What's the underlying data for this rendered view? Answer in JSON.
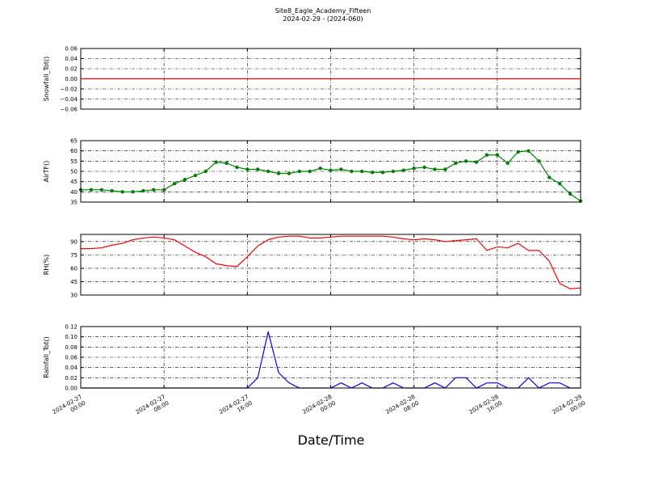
{
  "figure": {
    "title": "Site8_Eagle_Academy_Fifteen",
    "subtitle": "2024-02-29 - (2024-060)"
  },
  "x_axis": {
    "label": "Date/Time",
    "xlim": [
      "2024-02-27 00:00",
      "2024-02-29 00:00"
    ],
    "xticks": [
      "2024-02-27 00:00",
      "2024-02-27 08:00",
      "2024-02-27 16:00",
      "2024-02-28 00:00",
      "2024-02-28 08:00",
      "2024-02-28 16:00",
      "2024-02-29 00:00"
    ],
    "x": [
      "2024-02-27 00:00",
      "2024-02-27 01:00",
      "2024-02-27 02:00",
      "2024-02-27 03:00",
      "2024-02-27 04:00",
      "2024-02-27 05:00",
      "2024-02-27 06:00",
      "2024-02-27 07:00",
      "2024-02-27 08:00",
      "2024-02-27 09:00",
      "2024-02-27 10:00",
      "2024-02-27 11:00",
      "2024-02-27 12:00",
      "2024-02-27 13:00",
      "2024-02-27 14:00",
      "2024-02-27 15:00",
      "2024-02-27 16:00",
      "2024-02-27 17:00",
      "2024-02-27 18:00",
      "2024-02-27 19:00",
      "2024-02-27 20:00",
      "2024-02-27 21:00",
      "2024-02-27 22:00",
      "2024-02-27 23:00",
      "2024-02-28 00:00",
      "2024-02-28 01:00",
      "2024-02-28 02:00",
      "2024-02-28 03:00",
      "2024-02-28 04:00",
      "2024-02-28 05:00",
      "2024-02-28 06:00",
      "2024-02-28 07:00",
      "2024-02-28 08:00",
      "2024-02-28 09:00",
      "2024-02-28 10:00",
      "2024-02-28 11:00",
      "2024-02-28 12:00",
      "2024-02-28 13:00",
      "2024-02-28 14:00",
      "2024-02-28 15:00",
      "2024-02-28 16:00",
      "2024-02-28 17:00",
      "2024-02-28 18:00",
      "2024-02-28 19:00",
      "2024-02-28 20:00",
      "2024-02-28 21:00",
      "2024-02-28 22:00",
      "2024-02-28 23:00",
      "2024-02-29 00:00"
    ]
  },
  "chart_data": [
    {
      "type": "line",
      "ylabel": "Snowfall_Tot()",
      "color": "#ff0000",
      "grid": true,
      "markers": false,
      "ylim": [
        -0.06,
        0.06
      ],
      "yticks": [
        {
          "value": -0.06,
          "label": "−0.06"
        },
        {
          "value": -0.04,
          "label": "−0.04"
        },
        {
          "value": -0.02,
          "label": "−0.02"
        },
        {
          "value": 0,
          "label": "0.00"
        },
        {
          "value": 0.02,
          "label": "0.02"
        },
        {
          "value": 0.04,
          "label": "0.04"
        },
        {
          "value": 0.06,
          "label": "0.06"
        }
      ],
      "values": [
        0,
        0,
        0,
        0,
        0,
        0,
        0,
        0,
        0,
        0,
        0,
        0,
        0,
        0,
        0,
        0,
        0,
        0,
        0,
        0,
        0,
        0,
        0,
        0,
        0,
        0,
        0,
        0,
        0,
        0,
        0,
        0,
        0,
        0,
        0,
        0,
        0,
        0,
        0,
        0,
        0,
        0,
        0,
        0,
        0,
        0,
        0,
        0,
        0
      ]
    },
    {
      "type": "line",
      "ylabel": "AirTF()",
      "color": "#008000",
      "grid": true,
      "markers": true,
      "ylim": [
        35,
        65
      ],
      "yticks": [
        35,
        40,
        45,
        50,
        55,
        60,
        65
      ],
      "values": [
        41,
        41,
        41,
        40.5,
        40,
        40,
        40.5,
        41,
        41,
        44,
        46,
        48,
        50,
        54.5,
        54,
        52,
        51,
        51,
        50,
        49,
        49,
        50,
        50,
        51.5,
        50.5,
        51,
        50,
        50,
        49.5,
        49.5,
        50,
        50.5,
        51.5,
        52,
        51,
        51,
        54,
        55,
        54.5,
        58,
        58,
        54,
        59.5,
        60,
        55,
        47,
        44,
        39,
        35.5
      ]
    },
    {
      "type": "line",
      "ylabel": "RH(%)",
      "color": "#ff0000",
      "grid": true,
      "markers": false,
      "ylim": [
        30,
        98
      ],
      "yticks": [
        30,
        45,
        60,
        75,
        90
      ],
      "values": [
        82,
        82,
        83,
        86,
        88,
        92,
        94,
        95,
        94,
        92,
        85,
        78,
        73,
        65,
        63,
        62,
        73,
        85,
        92,
        95,
        96,
        96,
        94,
        94,
        95,
        96,
        96,
        96,
        96,
        96,
        95,
        93,
        92,
        93,
        92,
        90,
        91,
        92,
        93,
        80,
        84,
        83,
        88,
        80,
        80,
        68,
        43,
        37,
        38
      ]
    },
    {
      "type": "line",
      "ylabel": "Rainfall_Tot()",
      "color": "#0000ff",
      "grid": true,
      "markers": false,
      "ylim": [
        0,
        0.12
      ],
      "yticks": [
        {
          "value": 0,
          "label": "0.00"
        },
        {
          "value": 0.02,
          "label": "0.02"
        },
        {
          "value": 0.04,
          "label": "0.04"
        },
        {
          "value": 0.06,
          "label": "0.06"
        },
        {
          "value": 0.08,
          "label": "0.08"
        },
        {
          "value": 0.1,
          "label": "0.10"
        },
        {
          "value": 0.12,
          "label": "0.12"
        }
      ],
      "values": [
        0,
        0,
        0,
        0,
        0,
        0,
        0,
        0,
        0,
        0,
        0,
        0,
        0,
        0,
        0,
        0,
        0,
        0.02,
        0.11,
        0.03,
        0.01,
        0,
        0,
        0,
        0,
        0.01,
        0,
        0.01,
        0,
        0,
        0.01,
        0,
        0,
        0,
        0.01,
        0,
        0.02,
        0.02,
        0,
        0.01,
        0.01,
        0,
        0,
        0.02,
        0,
        0.01,
        0.01,
        0,
        0
      ]
    }
  ]
}
